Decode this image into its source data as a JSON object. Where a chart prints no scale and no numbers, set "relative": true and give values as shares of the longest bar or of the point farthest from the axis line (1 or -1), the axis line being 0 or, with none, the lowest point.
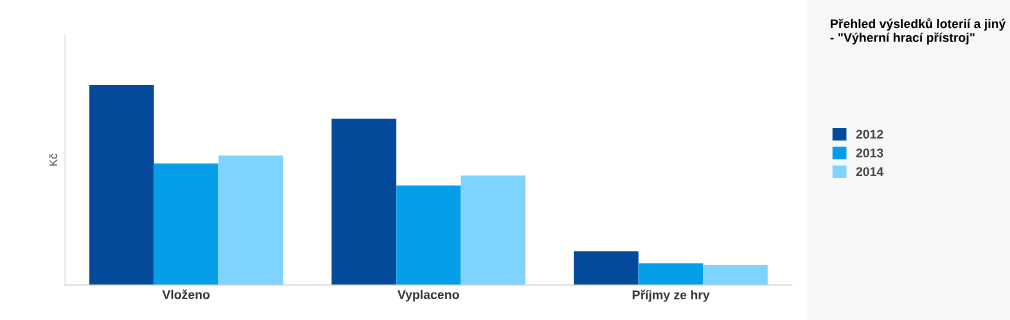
{
  "chart_data": {
    "type": "bar",
    "title": "Přehled výsledků loterií a jiný\n- \"Výherní hrací přístroj\"",
    "ylabel": "Kč",
    "categories": [
      "Vloženo",
      "Vyplaceno",
      "Příjmy ze hry"
    ],
    "relative": true,
    "series": [
      {
        "name": "2012",
        "color": "#034a9a",
        "values": [
          1,
          0.831,
          0.169
        ]
      },
      {
        "name": "2013",
        "color": "#049fe8",
        "values": [
          0.607,
          0.498,
          0.109
        ]
      },
      {
        "name": "2014",
        "color": "#7fd4ff",
        "values": [
          0.647,
          0.547,
          0.1
        ]
      }
    ],
    "legend": "right"
  }
}
